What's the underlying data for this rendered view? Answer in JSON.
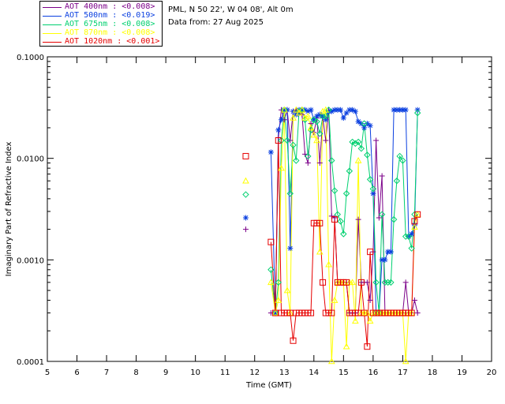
{
  "header": {
    "site": "PML, N 50 22', W 04 08', Alt 0m",
    "date_line": "Data from: 27 Aug 2025"
  },
  "legend": [
    {
      "label": "AOT  400nm : <0.008>",
      "color": "#7b0089"
    },
    {
      "label": "AOT  500nm : <0.019>",
      "color": "#0a3fe0"
    },
    {
      "label": "AOT  675nm : <0.008>",
      "color": "#00d070"
    },
    {
      "label": "AOT  870nm : <0.008>",
      "color": "#ffff00"
    },
    {
      "label": "AOT 1020nm : <0.001>",
      "color": "#e60000"
    }
  ],
  "chart_data": {
    "type": "line",
    "xlabel": "Time (GMT)",
    "ylabel": "Imaginary Part of Refractive Index",
    "xlim": [
      5,
      20
    ],
    "ylim": [
      0.0001,
      0.1
    ],
    "yscale": "log",
    "xticks": [
      "5",
      "6",
      "7",
      "8",
      "9",
      "10",
      "11",
      "12",
      "13",
      "14",
      "15",
      "16",
      "17",
      "18",
      "19",
      "20"
    ],
    "yticks": [
      {
        "value": 0.0001,
        "label": "0.0001"
      },
      {
        "value": 0.001,
        "label": "0.0010"
      },
      {
        "value": 0.01,
        "label": "0.0100"
      },
      {
        "value": 0.1,
        "label": "0.1000"
      }
    ],
    "series": [
      {
        "name": "AOT  400nm : <0.008>",
        "color": "#7b0089",
        "marker": "plus",
        "standalone": [
          {
            "x": 11.7,
            "y": 0.002
          }
        ],
        "x": [
          12.55,
          12.7,
          12.8,
          12.9,
          13.0,
          13.1,
          13.2,
          13.3,
          13.4,
          13.5,
          13.6,
          13.7,
          13.8,
          13.9,
          14.0,
          14.1,
          14.2,
          14.3,
          14.4,
          14.5,
          14.6,
          14.7,
          14.8,
          14.9,
          15.0,
          15.1,
          15.2,
          15.3,
          15.4,
          15.5,
          15.6,
          15.7,
          15.8,
          15.9,
          16.0,
          16.1,
          16.2,
          16.3,
          16.4,
          16.5,
          16.6,
          16.7,
          16.8,
          16.9,
          17.0,
          17.1,
          17.2,
          17.3,
          17.4,
          17.5
        ],
        "y": [
          0.0003,
          0.0003,
          0.016,
          0.03,
          0.024,
          0.03,
          0.015,
          0.029,
          0.03,
          0.028,
          0.027,
          0.011,
          0.009,
          0.022,
          0.018,
          0.025,
          0.009,
          0.025,
          0.015,
          0.03,
          0.0027,
          0.0026,
          0.0006,
          0.0006,
          0.0006,
          0.0006,
          0.0003,
          0.0003,
          0.0003,
          0.0025,
          0.0006,
          0.0006,
          0.0006,
          0.0004,
          0.0012,
          0.015,
          0.0026,
          0.0067,
          0.0003,
          0.0003,
          0.0003,
          0.0003,
          0.0003,
          0.0003,
          0.0003,
          0.0006,
          0.0003,
          0.0003,
          0.0004,
          0.0003
        ]
      },
      {
        "name": "AOT  500nm : <0.019>",
        "color": "#0a3fe0",
        "marker": "star",
        "standalone": [
          {
            "x": 11.7,
            "y": 0.0026
          }
        ],
        "x": [
          12.55,
          12.7,
          12.8,
          12.9,
          13.0,
          13.1,
          13.2,
          13.3,
          13.4,
          13.5,
          13.6,
          13.7,
          13.8,
          13.9,
          14.0,
          14.1,
          14.2,
          14.3,
          14.4,
          14.5,
          14.6,
          14.7,
          14.8,
          14.9,
          15.0,
          15.1,
          15.2,
          15.3,
          15.4,
          15.5,
          15.6,
          15.7,
          15.8,
          15.9,
          16.0,
          16.1,
          16.2,
          16.3,
          16.4,
          16.5,
          16.6,
          16.7,
          16.8,
          16.9,
          17.0,
          17.1,
          17.2,
          17.3,
          17.4,
          17.5
        ],
        "y": [
          0.0115,
          0.0003,
          0.019,
          0.024,
          0.03,
          0.03,
          0.0013,
          0.029,
          0.027,
          0.03,
          0.03,
          0.03,
          0.029,
          0.03,
          0.024,
          0.026,
          0.027,
          0.026,
          0.024,
          0.029,
          0.029,
          0.03,
          0.03,
          0.03,
          0.025,
          0.028,
          0.03,
          0.03,
          0.029,
          0.023,
          0.022,
          0.02,
          0.022,
          0.021,
          0.0045,
          0.0003,
          0.0003,
          0.001,
          0.001,
          0.0012,
          0.0012,
          0.03,
          0.03,
          0.03,
          0.03,
          0.03,
          0.0017,
          0.0018,
          0.0022,
          0.03
        ]
      },
      {
        "name": "AOT  675nm : <0.008>",
        "color": "#00d070",
        "marker": "diamond",
        "standalone": [
          {
            "x": 11.7,
            "y": 0.0044
          }
        ],
        "x": [
          12.55,
          12.7,
          12.8,
          12.9,
          13.0,
          13.1,
          13.2,
          13.3,
          13.4,
          13.5,
          13.6,
          13.7,
          13.8,
          13.9,
          14.0,
          14.1,
          14.2,
          14.3,
          14.4,
          14.5,
          14.6,
          14.7,
          14.8,
          14.9,
          15.0,
          15.1,
          15.2,
          15.3,
          15.4,
          15.5,
          15.6,
          15.7,
          15.8,
          15.9,
          16.0,
          16.1,
          16.2,
          16.3,
          16.4,
          16.5,
          16.6,
          16.7,
          16.8,
          16.9,
          17.0,
          17.1,
          17.2,
          17.3,
          17.4,
          17.5
        ],
        "y": [
          0.0008,
          0.0003,
          0.0006,
          0.015,
          0.03,
          0.015,
          0.0045,
          0.0135,
          0.0095,
          0.029,
          0.03,
          0.024,
          0.0105,
          0.019,
          0.024,
          0.023,
          0.0175,
          0.026,
          0.026,
          0.03,
          0.0095,
          0.0048,
          0.0028,
          0.0024,
          0.0018,
          0.0045,
          0.0075,
          0.0145,
          0.014,
          0.0145,
          0.0125,
          0.022,
          0.0108,
          0.0062,
          0.005,
          0.0006,
          0.0003,
          0.0028,
          0.0006,
          0.0006,
          0.0006,
          0.0025,
          0.006,
          0.0105,
          0.0095,
          0.0017,
          0.0017,
          0.0013,
          0.0028,
          0.028
        ]
      },
      {
        "name": "AOT  870nm : <0.008>",
        "color": "#ffff00",
        "marker": "triangle",
        "standalone": [
          {
            "x": 11.7,
            "y": 0.006
          }
        ],
        "x": [
          12.55,
          12.7,
          12.8,
          12.9,
          13.0,
          13.1,
          13.2,
          13.3,
          13.4,
          13.5,
          13.6,
          13.7,
          13.8,
          13.9,
          14.0,
          14.1,
          14.2,
          14.3,
          14.4,
          14.5,
          14.6,
          14.7,
          14.8,
          14.9,
          15.0,
          15.1,
          15.2,
          15.3,
          15.4,
          15.5,
          15.6,
          15.7,
          15.8,
          15.9,
          16.0,
          16.1,
          16.2,
          16.3,
          16.4,
          16.5,
          16.6,
          16.7,
          16.8,
          16.9,
          17.0,
          17.1,
          17.2,
          17.3,
          17.4,
          17.5
        ],
        "y": [
          0.0006,
          0.0003,
          0.0004,
          0.008,
          0.03,
          0.0005,
          0.0003,
          0.025,
          0.03,
          0.028,
          0.03,
          0.025,
          0.026,
          0.02,
          0.017,
          0.015,
          0.0012,
          0.029,
          0.03,
          0.0009,
          0.0001,
          0.0004,
          0.0006,
          0.0006,
          0.0006,
          0.00014,
          0.0006,
          0.0006,
          0.00025,
          0.0095,
          0.0003,
          0.0003,
          0.0003,
          0.00025,
          0.0003,
          0.0003,
          0.0003,
          0.0003,
          0.0003,
          0.0003,
          0.0003,
          0.0003,
          0.0003,
          0.0003,
          0.0003,
          0.0001,
          0.0003,
          0.0003,
          0.0021,
          0.0028
        ]
      },
      {
        "name": "AOT 1020nm : <0.001>",
        "color": "#e60000",
        "marker": "square",
        "standalone": [
          {
            "x": 11.7,
            "y": 0.0105
          }
        ],
        "x": [
          12.55,
          12.7,
          12.8,
          12.9,
          13.0,
          13.1,
          13.2,
          13.3,
          13.4,
          13.5,
          13.6,
          13.7,
          13.8,
          13.9,
          14.0,
          14.1,
          14.2,
          14.3,
          14.4,
          14.5,
          14.6,
          14.7,
          14.8,
          14.9,
          15.0,
          15.1,
          15.2,
          15.3,
          15.4,
          15.5,
          15.6,
          15.7,
          15.8,
          15.9,
          16.0,
          16.1,
          16.2,
          16.3,
          16.4,
          16.5,
          16.6,
          16.7,
          16.8,
          16.9,
          17.0,
          17.1,
          17.2,
          17.3,
          17.4,
          17.5
        ],
        "y": [
          0.0015,
          0.0003,
          0.015,
          0.0003,
          0.0003,
          0.0003,
          0.0003,
          0.00016,
          0.0003,
          0.0003,
          0.0003,
          0.0003,
          0.0003,
          0.0003,
          0.0023,
          0.0023,
          0.0023,
          0.0006,
          0.0003,
          0.0003,
          0.0003,
          0.0025,
          0.0006,
          0.0006,
          0.0006,
          0.0006,
          0.0003,
          0.0003,
          0.0003,
          0.0003,
          0.0006,
          0.0003,
          0.00014,
          0.0012,
          0.0003,
          0.0003,
          0.0003,
          0.0003,
          0.0003,
          0.0003,
          0.0003,
          0.0003,
          0.0003,
          0.0003,
          0.0003,
          0.0003,
          0.0003,
          0.0003,
          0.0024,
          0.0028
        ]
      }
    ]
  }
}
